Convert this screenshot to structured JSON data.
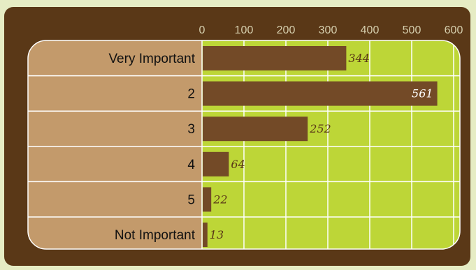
{
  "chart_data": {
    "type": "bar",
    "orientation": "horizontal",
    "categories": [
      "Very Important",
      "2",
      "3",
      "4",
      "5",
      "Not Important"
    ],
    "values": [
      344,
      561,
      252,
      64,
      22,
      13
    ],
    "xlim": [
      0,
      600
    ],
    "xticks": [
      0,
      100,
      200,
      300,
      400,
      500,
      600
    ],
    "title": "",
    "xlabel": "",
    "ylabel": "",
    "grid": true,
    "legend": "none",
    "colors": {
      "frame": "#5a3817",
      "page_bg": "#e6ecc4",
      "plot_bg": "#bdd637",
      "label_bg": "#c39a6b",
      "bar": "#734a27",
      "grid": "#ffffff",
      "tick_text": "#d6cfae",
      "value_label_outside": "#5a3817",
      "value_label_inside": "#ffffff"
    }
  }
}
